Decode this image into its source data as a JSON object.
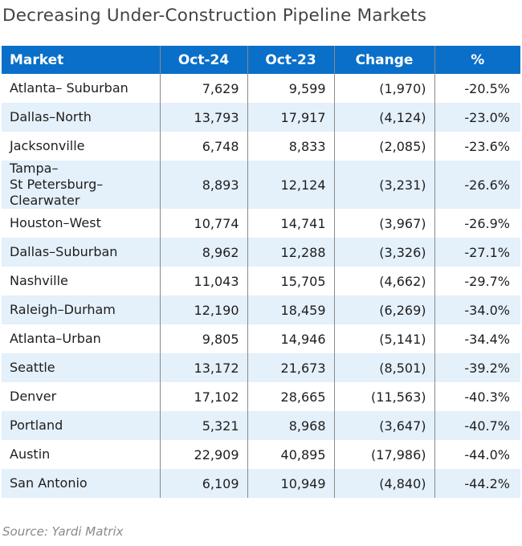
{
  "title": "Decreasing Under-Construction Pipeline Markets",
  "source": "Source: Yardi Matrix",
  "colors": {
    "header_bg": "#0a6fc8",
    "stripe": "#e4f0fa"
  },
  "chart_data": {
    "type": "table",
    "title": "Decreasing Under-Construction Pipeline Markets",
    "columns": [
      "Market",
      "Oct-24",
      "Oct-23",
      "Change",
      "%"
    ],
    "rows": [
      [
        "Atlanta– Suburban",
        "7,629",
        "9,599",
        "(1,970)",
        "-20.5%"
      ],
      [
        "Dallas–North",
        "13,793",
        "17,917",
        "(4,124)",
        "-23.0%"
      ],
      [
        "Jacksonville",
        "6,748",
        "8,833",
        "(2,085)",
        "-23.6%"
      ],
      [
        "Tampa–\nSt Petersburg–\nClearwater",
        "8,893",
        "12,124",
        "(3,231)",
        "-26.6%"
      ],
      [
        "Houston–West",
        "10,774",
        "14,741",
        "(3,967)",
        "-26.9%"
      ],
      [
        "Dallas–Suburban",
        "8,962",
        "12,288",
        "(3,326)",
        "-27.1%"
      ],
      [
        "Nashville",
        "11,043",
        "15,705",
        "(4,662)",
        "-29.7%"
      ],
      [
        "Raleigh–Durham",
        "12,190",
        "18,459",
        "(6,269)",
        "-34.0%"
      ],
      [
        "Atlanta–Urban",
        "9,805",
        "14,946",
        "(5,141)",
        "-34.4%"
      ],
      [
        "Seattle",
        "13,172",
        "21,673",
        "(8,501)",
        "-39.2%"
      ],
      [
        "Denver",
        "17,102",
        "28,665",
        "(11,563)",
        "-40.3%"
      ],
      [
        "Portland",
        "5,321",
        "8,968",
        "(3,647)",
        "-40.7%"
      ],
      [
        "Austin",
        "22,909",
        "40,895",
        "(17,986)",
        "-44.0%"
      ],
      [
        "San Antonio",
        "6,109",
        "10,949",
        "(4,840)",
        "-44.2%"
      ]
    ]
  }
}
